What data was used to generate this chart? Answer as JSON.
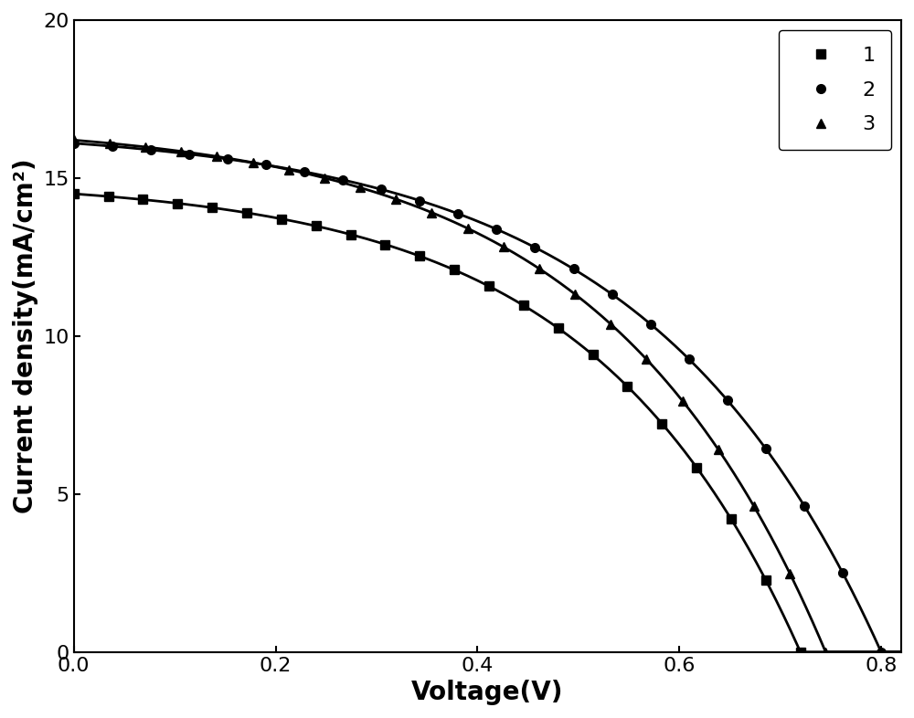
{
  "xlabel": "Voltage(V)",
  "ylabel": "Current density(mA/cm²)",
  "xlim": [
    0.0,
    0.82
  ],
  "ylim": [
    0,
    20
  ],
  "xticks": [
    0.0,
    0.2,
    0.4,
    0.6,
    0.8
  ],
  "yticks": [
    0,
    5,
    10,
    15,
    20
  ],
  "background_color": "#ffffff",
  "curves": [
    {
      "label": "1",
      "marker": "s",
      "color": "#000000",
      "jsc": 14.5,
      "voc": 0.72,
      "n": 8.0
    },
    {
      "label": "2",
      "marker": "o",
      "color": "#000000",
      "jsc": 16.1,
      "voc": 0.8,
      "n": 9.0
    },
    {
      "label": "3",
      "marker": "^",
      "color": "#000000",
      "jsc": 16.2,
      "voc": 0.745,
      "n": 8.5
    }
  ],
  "legend_loc": "upper right",
  "linewidth": 2.0,
  "markersize": 7,
  "xlabel_fontsize": 20,
  "ylabel_fontsize": 20,
  "tick_fontsize": 16,
  "legend_fontsize": 16
}
